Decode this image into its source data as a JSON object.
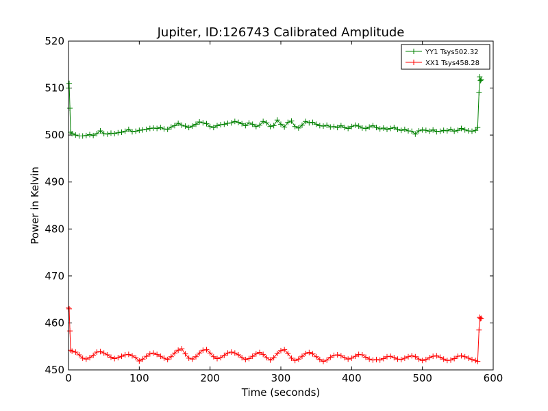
{
  "chart_data": {
    "type": "line",
    "title": "Jupiter, ID:126743 Calibrated Amplitude",
    "xlabel": "Time (seconds)",
    "ylabel": "Power in Kelvin",
    "xlim": [
      0,
      600
    ],
    "ylim": [
      450,
      520
    ],
    "xticks": [
      0,
      100,
      200,
      300,
      400,
      500,
      600
    ],
    "yticks": [
      450,
      460,
      470,
      480,
      490,
      500,
      510,
      520
    ],
    "grid": false,
    "legend_position": "top-right",
    "marker": "+",
    "series": [
      {
        "name": "YY1 Tsys502.32",
        "color": "#008000",
        "points": [
          [
            0,
            510.0
          ],
          [
            1,
            511.0
          ],
          [
            2,
            505.7
          ],
          [
            3,
            500.6
          ],
          [
            5,
            500.3
          ],
          [
            10,
            500.0
          ],
          [
            15,
            499.8
          ],
          [
            20,
            499.8
          ],
          [
            25,
            499.9
          ],
          [
            30,
            500.1
          ],
          [
            35,
            499.9
          ],
          [
            40,
            500.3
          ],
          [
            45,
            500.9
          ],
          [
            50,
            500.3
          ],
          [
            55,
            500.2
          ],
          [
            60,
            500.4
          ],
          [
            65,
            500.3
          ],
          [
            70,
            500.5
          ],
          [
            75,
            500.6
          ],
          [
            80,
            500.8
          ],
          [
            85,
            501.2
          ],
          [
            90,
            500.7
          ],
          [
            95,
            500.8
          ],
          [
            100,
            501.0
          ],
          [
            105,
            501.1
          ],
          [
            110,
            501.2
          ],
          [
            115,
            501.4
          ],
          [
            120,
            501.5
          ],
          [
            125,
            501.4
          ],
          [
            130,
            501.6
          ],
          [
            135,
            501.3
          ],
          [
            140,
            501.2
          ],
          [
            145,
            501.7
          ],
          [
            150,
            502.0
          ],
          [
            155,
            502.5
          ],
          [
            160,
            502.1
          ],
          [
            165,
            501.9
          ],
          [
            170,
            501.6
          ],
          [
            175,
            501.9
          ],
          [
            180,
            502.3
          ],
          [
            185,
            502.8
          ],
          [
            190,
            502.6
          ],
          [
            195,
            502.4
          ],
          [
            200,
            501.8
          ],
          [
            205,
            501.6
          ],
          [
            210,
            502.0
          ],
          [
            215,
            502.2
          ],
          [
            220,
            502.3
          ],
          [
            225,
            502.5
          ],
          [
            230,
            502.6
          ],
          [
            235,
            502.9
          ],
          [
            240,
            502.7
          ],
          [
            245,
            502.4
          ],
          [
            250,
            502.0
          ],
          [
            255,
            502.6
          ],
          [
            260,
            502.3
          ],
          [
            265,
            501.8
          ],
          [
            270,
            502.1
          ],
          [
            275,
            502.9
          ],
          [
            280,
            502.6
          ],
          [
            285,
            501.8
          ],
          [
            290,
            502.0
          ],
          [
            295,
            503.2
          ],
          [
            300,
            502.3
          ],
          [
            305,
            501.7
          ],
          [
            310,
            502.7
          ],
          [
            315,
            503.0
          ],
          [
            320,
            501.8
          ],
          [
            325,
            501.5
          ],
          [
            330,
            502.1
          ],
          [
            335,
            502.9
          ],
          [
            340,
            502.6
          ],
          [
            345,
            502.7
          ],
          [
            350,
            502.3
          ],
          [
            355,
            502.0
          ],
          [
            360,
            501.9
          ],
          [
            365,
            502.1
          ],
          [
            370,
            501.7
          ],
          [
            375,
            501.8
          ],
          [
            380,
            501.6
          ],
          [
            385,
            502.0
          ],
          [
            390,
            501.6
          ],
          [
            395,
            501.4
          ],
          [
            400,
            501.8
          ],
          [
            405,
            502.1
          ],
          [
            410,
            501.9
          ],
          [
            415,
            501.5
          ],
          [
            420,
            501.4
          ],
          [
            425,
            501.7
          ],
          [
            430,
            502.0
          ],
          [
            435,
            501.6
          ],
          [
            440,
            501.3
          ],
          [
            445,
            501.5
          ],
          [
            450,
            501.2
          ],
          [
            455,
            501.4
          ],
          [
            460,
            501.6
          ],
          [
            465,
            501.2
          ],
          [
            470,
            501.0
          ],
          [
            475,
            501.2
          ],
          [
            480,
            500.9
          ],
          [
            485,
            500.8
          ],
          [
            490,
            500.2
          ],
          [
            495,
            500.9
          ],
          [
            500,
            501.1
          ],
          [
            505,
            501.0
          ],
          [
            510,
            500.8
          ],
          [
            515,
            501.1
          ],
          [
            520,
            500.7
          ],
          [
            525,
            500.8
          ],
          [
            530,
            501.0
          ],
          [
            535,
            500.9
          ],
          [
            540,
            501.2
          ],
          [
            545,
            500.8
          ],
          [
            550,
            501.0
          ],
          [
            555,
            501.4
          ],
          [
            560,
            501.1
          ],
          [
            565,
            500.9
          ],
          [
            570,
            500.8
          ],
          [
            575,
            501.0
          ],
          [
            578,
            501.6
          ],
          [
            580,
            509.0
          ],
          [
            581,
            512.4
          ],
          [
            582,
            511.6
          ],
          [
            583,
            511.8
          ]
        ]
      },
      {
        "name": "XX1 Tsys458.28",
        "color": "#ff0000",
        "points": [
          [
            0,
            463.2
          ],
          [
            1,
            463.0
          ],
          [
            2,
            458.3
          ],
          [
            3,
            454.2
          ],
          [
            5,
            454.0
          ],
          [
            10,
            453.8
          ],
          [
            15,
            453.2
          ],
          [
            20,
            452.5
          ],
          [
            25,
            452.3
          ],
          [
            30,
            452.6
          ],
          [
            35,
            453.1
          ],
          [
            40,
            453.8
          ],
          [
            45,
            453.9
          ],
          [
            50,
            453.6
          ],
          [
            55,
            453.2
          ],
          [
            60,
            452.7
          ],
          [
            65,
            452.4
          ],
          [
            70,
            452.6
          ],
          [
            75,
            452.9
          ],
          [
            80,
            453.2
          ],
          [
            85,
            453.3
          ],
          [
            90,
            453.0
          ],
          [
            95,
            452.6
          ],
          [
            100,
            451.9
          ],
          [
            105,
            452.3
          ],
          [
            110,
            452.9
          ],
          [
            115,
            453.4
          ],
          [
            120,
            453.6
          ],
          [
            125,
            453.3
          ],
          [
            130,
            452.9
          ],
          [
            135,
            452.5
          ],
          [
            140,
            452.2
          ],
          [
            145,
            452.8
          ],
          [
            150,
            453.6
          ],
          [
            155,
            454.2
          ],
          [
            160,
            454.5
          ],
          [
            165,
            453.4
          ],
          [
            170,
            452.5
          ],
          [
            175,
            452.3
          ],
          [
            180,
            452.8
          ],
          [
            185,
            453.6
          ],
          [
            190,
            454.2
          ],
          [
            195,
            454.3
          ],
          [
            200,
            453.6
          ],
          [
            205,
            452.8
          ],
          [
            210,
            452.4
          ],
          [
            215,
            452.6
          ],
          [
            220,
            453.1
          ],
          [
            225,
            453.6
          ],
          [
            230,
            453.8
          ],
          [
            235,
            453.6
          ],
          [
            240,
            453.2
          ],
          [
            245,
            452.6
          ],
          [
            250,
            452.2
          ],
          [
            255,
            452.4
          ],
          [
            260,
            452.9
          ],
          [
            265,
            453.4
          ],
          [
            270,
            453.7
          ],
          [
            275,
            453.3
          ],
          [
            280,
            452.6
          ],
          [
            285,
            452.1
          ],
          [
            290,
            452.6
          ],
          [
            295,
            453.5
          ],
          [
            300,
            454.1
          ],
          [
            305,
            454.3
          ],
          [
            310,
            453.5
          ],
          [
            315,
            452.5
          ],
          [
            320,
            452.0
          ],
          [
            325,
            452.3
          ],
          [
            330,
            452.9
          ],
          [
            335,
            453.5
          ],
          [
            340,
            453.7
          ],
          [
            345,
            453.4
          ],
          [
            350,
            452.8
          ],
          [
            355,
            452.2
          ],
          [
            360,
            451.8
          ],
          [
            365,
            452.1
          ],
          [
            370,
            452.7
          ],
          [
            375,
            453.1
          ],
          [
            380,
            453.2
          ],
          [
            385,
            453.0
          ],
          [
            390,
            452.6
          ],
          [
            395,
            452.3
          ],
          [
            400,
            452.5
          ],
          [
            405,
            452.9
          ],
          [
            410,
            453.3
          ],
          [
            415,
            453.2
          ],
          [
            420,
            452.7
          ],
          [
            425,
            452.3
          ],
          [
            430,
            452.1
          ],
          [
            435,
            452.2
          ],
          [
            440,
            452.1
          ],
          [
            445,
            452.4
          ],
          [
            450,
            452.8
          ],
          [
            455,
            452.9
          ],
          [
            460,
            452.6
          ],
          [
            465,
            452.3
          ],
          [
            470,
            452.2
          ],
          [
            475,
            452.5
          ],
          [
            480,
            452.8
          ],
          [
            485,
            453.0
          ],
          [
            490,
            452.8
          ],
          [
            495,
            452.3
          ],
          [
            500,
            452.0
          ],
          [
            505,
            452.2
          ],
          [
            510,
            452.6
          ],
          [
            515,
            452.9
          ],
          [
            520,
            453.0
          ],
          [
            525,
            452.7
          ],
          [
            530,
            452.3
          ],
          [
            535,
            452.0
          ],
          [
            540,
            452.1
          ],
          [
            545,
            452.4
          ],
          [
            550,
            452.9
          ],
          [
            555,
            453.0
          ],
          [
            560,
            452.8
          ],
          [
            565,
            452.5
          ],
          [
            570,
            452.2
          ],
          [
            575,
            452.0
          ],
          [
            578,
            451.8
          ],
          [
            580,
            458.5
          ],
          [
            581,
            461.2
          ],
          [
            582,
            460.9
          ],
          [
            583,
            461.0
          ]
        ]
      }
    ]
  }
}
